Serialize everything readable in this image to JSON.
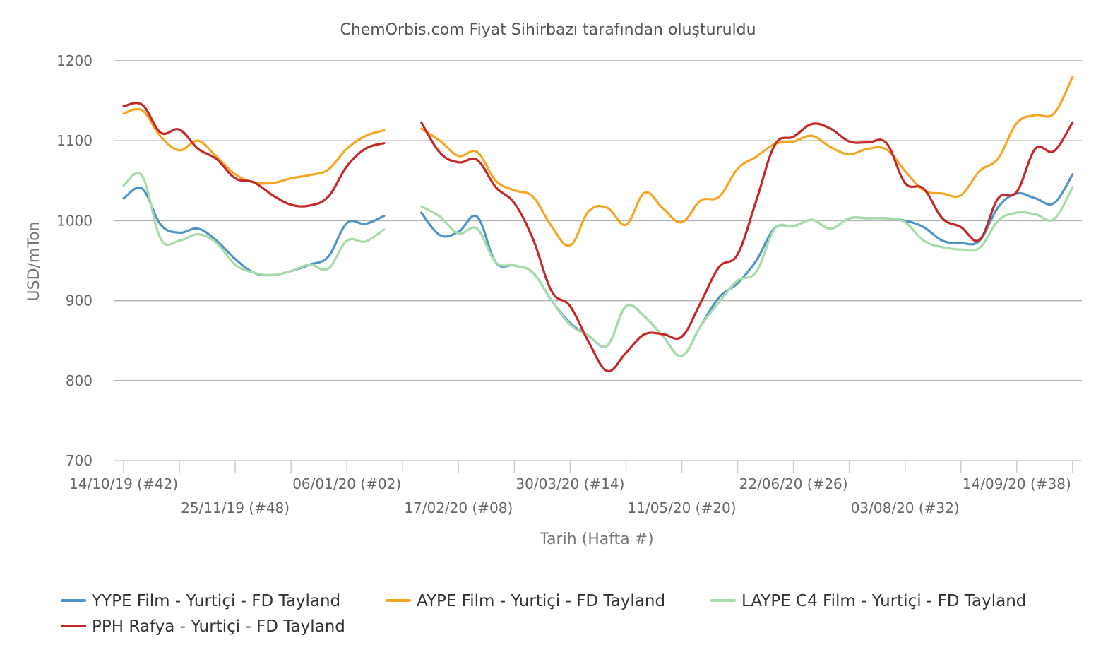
{
  "chart_data": {
    "type": "line",
    "title": "ChemOrbis.com Fiyat Sihirbazı tarafından oluşturuldu",
    "xlabel": "Tarih (Hafta #)",
    "ylabel": "USD/mTon",
    "ylim": [
      700,
      1200
    ],
    "yticks": [
      "700",
      "800",
      "900",
      "1000",
      "1100",
      "1200"
    ],
    "grid": "horizontal",
    "legend_position": "bottom",
    "x_week_range": [
      0,
      49
    ],
    "x_tick_labels": [
      {
        "week": 0,
        "label": "14/10/19 (#42)"
      },
      {
        "week": 6,
        "label": "25/11/19 (#48)"
      },
      {
        "week": 12,
        "label": "06/01/20 (#02)"
      },
      {
        "week": 18,
        "label": "17/02/20 (#08)"
      },
      {
        "week": 24,
        "label": "30/03/20 (#14)"
      },
      {
        "week": 30,
        "label": "11/05/20 (#20)"
      },
      {
        "week": 36,
        "label": "22/06/20 (#26)"
      },
      {
        "week": 42,
        "label": "03/08/20 (#32)"
      },
      {
        "week": 48,
        "label": "14/09/20 (#38)"
      }
    ],
    "series": [
      {
        "name": "YYPE Film - Yurtiçi  - FD Tayland",
        "color": "#4f94c8",
        "points": [
          [
            0,
            1028
          ],
          [
            1,
            1040
          ],
          [
            2,
            995
          ],
          [
            3,
            985
          ],
          [
            4,
            990
          ],
          [
            5,
            975
          ],
          [
            6,
            952
          ],
          [
            7,
            935
          ],
          [
            8,
            932
          ],
          [
            9,
            937
          ],
          [
            10,
            945
          ],
          [
            11,
            955
          ],
          [
            12,
            997
          ],
          [
            13,
            996
          ],
          [
            14,
            1006
          ],
          null,
          [
            16,
            1010
          ],
          [
            17,
            982
          ],
          [
            18,
            986
          ],
          [
            19,
            1005
          ],
          [
            20,
            948
          ],
          [
            21,
            944
          ],
          [
            22,
            935
          ],
          [
            23,
            900
          ],
          [
            24,
            872
          ],
          [
            25,
            856
          ],
          [
            26,
            844
          ],
          [
            27,
            893
          ],
          [
            28,
            880
          ],
          [
            29,
            855
          ],
          [
            30,
            831
          ],
          [
            31,
            868
          ],
          [
            32,
            904
          ],
          [
            33,
            922
          ],
          [
            34,
            950
          ],
          [
            35,
            991
          ],
          [
            36,
            993
          ],
          [
            37,
            1001
          ],
          [
            38,
            990
          ],
          [
            39,
            1003
          ],
          [
            40,
            1003
          ],
          [
            41,
            1003
          ],
          [
            42,
            1000
          ],
          [
            43,
            992
          ],
          [
            44,
            975
          ],
          [
            45,
            972
          ],
          [
            46,
            975
          ],
          [
            47,
            1017
          ],
          [
            48,
            1034
          ],
          [
            49,
            1028
          ],
          [
            50,
            1022
          ],
          [
            51,
            1058
          ]
        ]
      },
      {
        "name": "AYPE Film - Yurtiçi  - FD Tayland",
        "color": "#f5a623",
        "points": [
          [
            0,
            1134
          ],
          [
            1,
            1138
          ],
          [
            2,
            1105
          ],
          [
            3,
            1088
          ],
          [
            4,
            1100
          ],
          [
            5,
            1080
          ],
          [
            6,
            1058
          ],
          [
            7,
            1048
          ],
          [
            8,
            1047
          ],
          [
            9,
            1053
          ],
          [
            10,
            1057
          ],
          [
            11,
            1064
          ],
          [
            12,
            1090
          ],
          [
            13,
            1106
          ],
          [
            14,
            1113
          ],
          null,
          [
            16,
            1115
          ],
          [
            17,
            1100
          ],
          [
            18,
            1081
          ],
          [
            19,
            1086
          ],
          [
            20,
            1050
          ],
          [
            21,
            1038
          ],
          [
            22,
            1030
          ],
          [
            23,
            993
          ],
          [
            24,
            969
          ],
          [
            25,
            1012
          ],
          [
            26,
            1016
          ],
          [
            27,
            995
          ],
          [
            28,
            1035
          ],
          [
            29,
            1015
          ],
          [
            30,
            998
          ],
          [
            31,
            1025
          ],
          [
            32,
            1030
          ],
          [
            33,
            1065
          ],
          [
            34,
            1080
          ],
          [
            35,
            1096
          ],
          [
            36,
            1099
          ],
          [
            37,
            1106
          ],
          [
            38,
            1092
          ],
          [
            39,
            1083
          ],
          [
            40,
            1090
          ],
          [
            41,
            1089
          ],
          [
            42,
            1062
          ],
          [
            43,
            1038
          ],
          [
            44,
            1034
          ],
          [
            45,
            1032
          ],
          [
            46,
            1062
          ],
          [
            47,
            1078
          ],
          [
            48,
            1122
          ],
          [
            49,
            1132
          ],
          [
            50,
            1134
          ],
          [
            51,
            1180
          ]
        ]
      },
      {
        "name": "LAYPE C4 Film - Yurtiçi  - FD Tayland",
        "color": "#a7dba8",
        "points": [
          [
            0,
            1044
          ],
          [
            1,
            1056
          ],
          [
            2,
            977
          ],
          [
            3,
            975
          ],
          [
            4,
            983
          ],
          [
            5,
            972
          ],
          [
            6,
            945
          ],
          [
            7,
            935
          ],
          [
            8,
            932
          ],
          [
            9,
            937
          ],
          [
            10,
            945
          ],
          [
            11,
            940
          ],
          [
            12,
            975
          ],
          [
            13,
            974
          ],
          [
            14,
            989
          ],
          null,
          [
            16,
            1018
          ],
          [
            17,
            1005
          ],
          [
            18,
            984
          ],
          [
            19,
            990
          ],
          [
            20,
            948
          ],
          [
            21,
            944
          ],
          [
            22,
            935
          ],
          [
            23,
            900
          ],
          [
            24,
            870
          ],
          [
            25,
            856
          ],
          [
            26,
            844
          ],
          [
            27,
            893
          ],
          [
            28,
            880
          ],
          [
            29,
            855
          ],
          [
            30,
            831
          ],
          [
            31,
            868
          ],
          [
            32,
            898
          ],
          [
            33,
            925
          ],
          [
            34,
            936
          ],
          [
            35,
            990
          ],
          [
            36,
            993
          ],
          [
            37,
            1001
          ],
          [
            38,
            990
          ],
          [
            39,
            1003
          ],
          [
            40,
            1003
          ],
          [
            41,
            1003
          ],
          [
            42,
            998
          ],
          [
            43,
            975
          ],
          [
            44,
            967
          ],
          [
            45,
            964
          ],
          [
            46,
            966
          ],
          [
            47,
            1000
          ],
          [
            48,
            1010
          ],
          [
            49,
            1008
          ],
          [
            50,
            1002
          ],
          [
            51,
            1042
          ]
        ]
      },
      {
        "name": "PPH Rafya - Yurtiçi  - FD Tayland",
        "color": "#c62828",
        "points": [
          [
            0,
            1143
          ],
          [
            1,
            1145
          ],
          [
            2,
            1110
          ],
          [
            3,
            1114
          ],
          [
            4,
            1090
          ],
          [
            5,
            1077
          ],
          [
            6,
            1053
          ],
          [
            7,
            1048
          ],
          [
            8,
            1032
          ],
          [
            9,
            1020
          ],
          [
            10,
            1019
          ],
          [
            11,
            1030
          ],
          [
            12,
            1068
          ],
          [
            13,
            1090
          ],
          [
            14,
            1097
          ],
          null,
          [
            16,
            1123
          ],
          [
            17,
            1085
          ],
          [
            18,
            1073
          ],
          [
            19,
            1076
          ],
          [
            20,
            1042
          ],
          [
            21,
            1022
          ],
          [
            22,
            977
          ],
          [
            23,
            912
          ],
          [
            24,
            893
          ],
          [
            25,
            848
          ],
          [
            26,
            812
          ],
          [
            27,
            835
          ],
          [
            28,
            858
          ],
          [
            29,
            858
          ],
          [
            30,
            855
          ],
          [
            31,
            897
          ],
          [
            32,
            942
          ],
          [
            33,
            958
          ],
          [
            34,
            1025
          ],
          [
            35,
            1095
          ],
          [
            36,
            1105
          ],
          [
            37,
            1121
          ],
          [
            38,
            1115
          ],
          [
            39,
            1099
          ],
          [
            40,
            1098
          ],
          [
            41,
            1097
          ],
          [
            42,
            1047
          ],
          [
            43,
            1040
          ],
          [
            44,
            1003
          ],
          [
            45,
            992
          ],
          [
            46,
            976
          ],
          [
            47,
            1028
          ],
          [
            48,
            1036
          ],
          [
            49,
            1090
          ],
          [
            50,
            1087
          ],
          [
            51,
            1123
          ]
        ]
      }
    ]
  }
}
